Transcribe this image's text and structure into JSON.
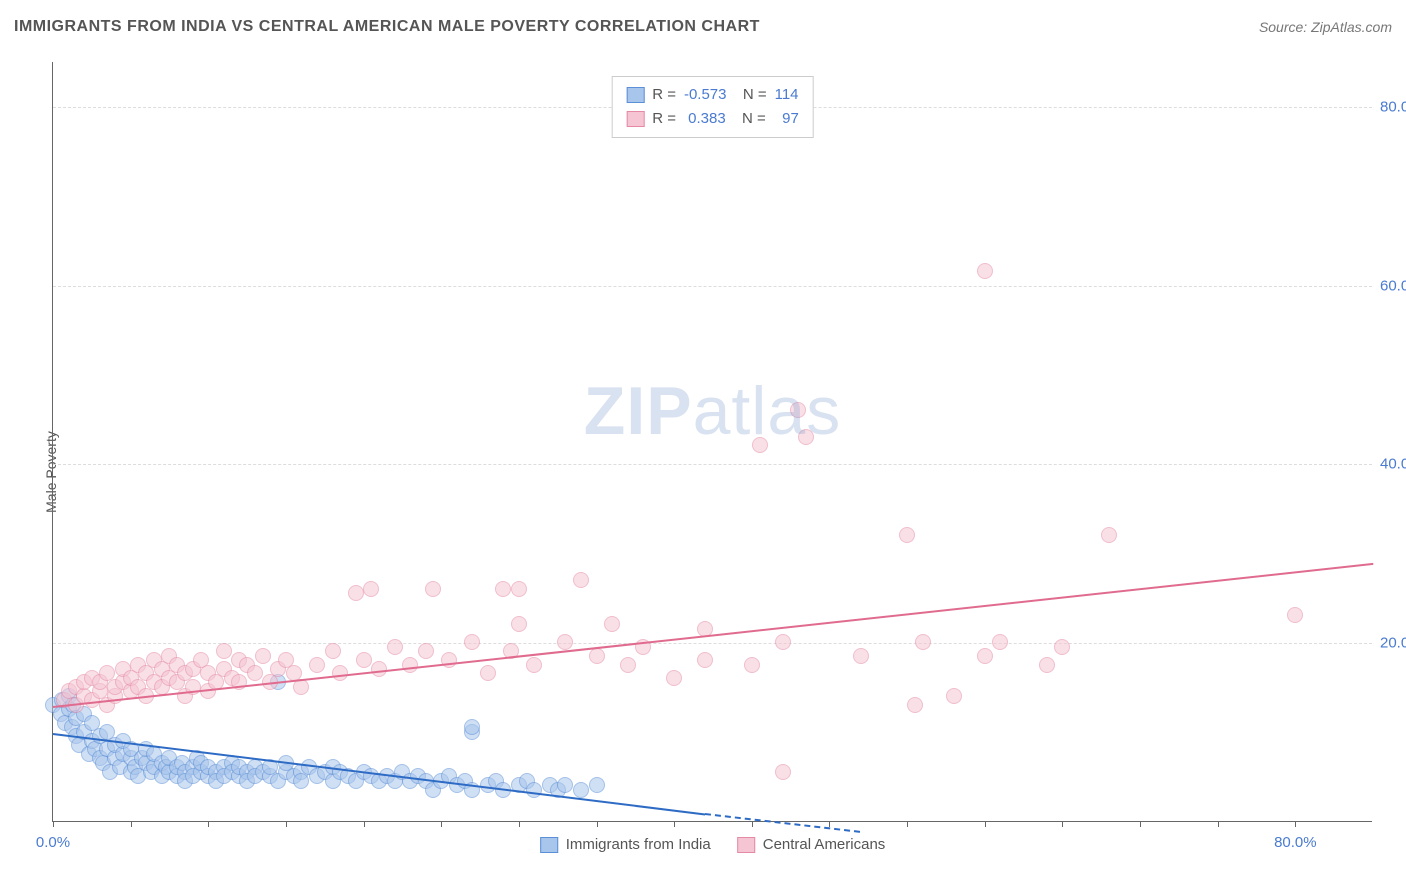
{
  "title": "IMMIGRANTS FROM INDIA VS CENTRAL AMERICAN MALE POVERTY CORRELATION CHART",
  "source": "Source: ZipAtlas.com",
  "y_axis_label": "Male Poverty",
  "watermark": {
    "bold": "ZIP",
    "light": "atlas"
  },
  "chart": {
    "type": "scatter",
    "xlim": [
      0,
      85
    ],
    "ylim": [
      0,
      85
    ],
    "x_ticks": [
      0,
      5,
      10,
      15,
      20,
      25,
      30,
      35,
      40,
      45,
      50,
      55,
      60,
      65,
      70,
      75,
      80
    ],
    "x_tick_labels": {
      "0": "0.0%",
      "80": "80.0%"
    },
    "y_gridlines": [
      20,
      40,
      60,
      80
    ],
    "y_tick_labels": {
      "20": "20.0%",
      "40": "40.0%",
      "60": "60.0%",
      "80": "80.0%"
    },
    "background_color": "#ffffff",
    "grid_color": "#dddddd",
    "axis_color": "#666666",
    "tick_label_color": "#4a7bd0",
    "point_radius": 8,
    "point_opacity": 0.55,
    "series": [
      {
        "name": "Immigrants from India",
        "color_fill": "#a8c5ec",
        "color_stroke": "#5b8fd6",
        "trend_color": "#2e6bc5",
        "R": "-0.573",
        "N": "114",
        "trend": {
          "x1": 0,
          "y1": 10,
          "x2": 42,
          "y2": 1.0,
          "dash_x2": 52,
          "dash_y2": -1.0
        },
        "points": [
          [
            0,
            13
          ],
          [
            0.5,
            12
          ],
          [
            0.6,
            13.5
          ],
          [
            0.8,
            11
          ],
          [
            1,
            12.5
          ],
          [
            1,
            14
          ],
          [
            1.2,
            10.5
          ],
          [
            1.3,
            13
          ],
          [
            1.5,
            9.5
          ],
          [
            1.5,
            11.5
          ],
          [
            1.7,
            8.5
          ],
          [
            2,
            10
          ],
          [
            2,
            12
          ],
          [
            2.3,
            7.5
          ],
          [
            2.5,
            9
          ],
          [
            2.5,
            11
          ],
          [
            2.7,
            8
          ],
          [
            3,
            7
          ],
          [
            3,
            9.5
          ],
          [
            3.2,
            6.5
          ],
          [
            3.5,
            8
          ],
          [
            3.5,
            10
          ],
          [
            3.7,
            5.5
          ],
          [
            4,
            7
          ],
          [
            4,
            8.5
          ],
          [
            4.3,
            6
          ],
          [
            4.5,
            7.5
          ],
          [
            4.5,
            9
          ],
          [
            5,
            5.5
          ],
          [
            5,
            7
          ],
          [
            5,
            8
          ],
          [
            5.3,
            6
          ],
          [
            5.5,
            5
          ],
          [
            5.7,
            7
          ],
          [
            6,
            6.5
          ],
          [
            6,
            8
          ],
          [
            6.3,
            5.5
          ],
          [
            6.5,
            6
          ],
          [
            6.5,
            7.5
          ],
          [
            7,
            5
          ],
          [
            7,
            6.5
          ],
          [
            7.3,
            6
          ],
          [
            7.5,
            5.5
          ],
          [
            7.5,
            7
          ],
          [
            8,
            5
          ],
          [
            8,
            6
          ],
          [
            8.3,
            6.5
          ],
          [
            8.5,
            5.5
          ],
          [
            8.5,
            4.5
          ],
          [
            9,
            6
          ],
          [
            9,
            5
          ],
          [
            9.3,
            7
          ],
          [
            9.5,
            5.5
          ],
          [
            9.5,
            6.5
          ],
          [
            10,
            5
          ],
          [
            10,
            6
          ],
          [
            10.5,
            5.5
          ],
          [
            10.5,
            4.5
          ],
          [
            11,
            6
          ],
          [
            11,
            5
          ],
          [
            11.5,
            6.5
          ],
          [
            11.5,
            5.5
          ],
          [
            12,
            5
          ],
          [
            12,
            6
          ],
          [
            12.5,
            5.5
          ],
          [
            12.5,
            4.5
          ],
          [
            13,
            6
          ],
          [
            13,
            5
          ],
          [
            13.5,
            5.5
          ],
          [
            14,
            5
          ],
          [
            14,
            6
          ],
          [
            14.5,
            4.5
          ],
          [
            15,
            5.5
          ],
          [
            15,
            6.5
          ],
          [
            15.5,
            5
          ],
          [
            16,
            5.5
          ],
          [
            16,
            4.5
          ],
          [
            16.5,
            6
          ],
          [
            17,
            5
          ],
          [
            17.5,
            5.5
          ],
          [
            18,
            4.5
          ],
          [
            18,
            6
          ],
          [
            18.5,
            5.5
          ],
          [
            19,
            5
          ],
          [
            19.5,
            4.5
          ],
          [
            20,
            5.5
          ],
          [
            20.5,
            5
          ],
          [
            21,
            4.5
          ],
          [
            21.5,
            5
          ],
          [
            22,
            4.5
          ],
          [
            22.5,
            5.5
          ],
          [
            23,
            4.5
          ],
          [
            23.5,
            5
          ],
          [
            24,
            4.5
          ],
          [
            24.5,
            3.5
          ],
          [
            25,
            4.5
          ],
          [
            25.5,
            5
          ],
          [
            26,
            4
          ],
          [
            26.5,
            4.5
          ],
          [
            27,
            3.5
          ],
          [
            28,
            4
          ],
          [
            28.5,
            4.5
          ],
          [
            29,
            3.5
          ],
          [
            30,
            4
          ],
          [
            30.5,
            4.5
          ],
          [
            31,
            3.5
          ],
          [
            32,
            4
          ],
          [
            32.5,
            3.5
          ],
          [
            33,
            4
          ],
          [
            34,
            3.5
          ],
          [
            35,
            4
          ],
          [
            14.5,
            15.5
          ],
          [
            27,
            10
          ],
          [
            27,
            10.5
          ]
        ]
      },
      {
        "name": "Central Americans",
        "color_fill": "#f5c5d3",
        "color_stroke": "#e58aa5",
        "trend_color": "#e06b8f",
        "R": "0.383",
        "N": "97",
        "trend": {
          "x1": 0,
          "y1": 13,
          "x2": 85,
          "y2": 29
        },
        "points": [
          [
            0.7,
            13.5
          ],
          [
            1,
            14.5
          ],
          [
            1.5,
            13
          ],
          [
            1.5,
            15
          ],
          [
            2,
            14
          ],
          [
            2,
            15.5
          ],
          [
            2.5,
            13.5
          ],
          [
            2.5,
            16
          ],
          [
            3,
            14.5
          ],
          [
            3,
            15.5
          ],
          [
            3.5,
            13
          ],
          [
            3.5,
            16.5
          ],
          [
            4,
            14
          ],
          [
            4,
            15
          ],
          [
            4.5,
            15.5
          ],
          [
            4.5,
            17
          ],
          [
            5,
            14.5
          ],
          [
            5,
            16
          ],
          [
            5.5,
            15
          ],
          [
            5.5,
            17.5
          ],
          [
            6,
            14
          ],
          [
            6,
            16.5
          ],
          [
            6.5,
            15.5
          ],
          [
            6.5,
            18
          ],
          [
            7,
            15
          ],
          [
            7,
            17
          ],
          [
            7.5,
            16
          ],
          [
            7.5,
            18.5
          ],
          [
            8,
            15.5
          ],
          [
            8,
            17.5
          ],
          [
            8.5,
            16.5
          ],
          [
            8.5,
            14
          ],
          [
            9,
            17
          ],
          [
            9,
            15
          ],
          [
            9.5,
            18
          ],
          [
            10,
            16.5
          ],
          [
            10,
            14.5
          ],
          [
            10.5,
            15.5
          ],
          [
            11,
            17
          ],
          [
            11,
            19
          ],
          [
            11.5,
            16
          ],
          [
            12,
            18
          ],
          [
            12,
            15.5
          ],
          [
            12.5,
            17.5
          ],
          [
            13,
            16.5
          ],
          [
            13.5,
            18.5
          ],
          [
            14,
            15.5
          ],
          [
            14.5,
            17
          ],
          [
            15,
            18
          ],
          [
            15.5,
            16.5
          ],
          [
            16,
            15
          ],
          [
            17,
            17.5
          ],
          [
            18,
            19
          ],
          [
            18.5,
            16.5
          ],
          [
            19.5,
            25.5
          ],
          [
            20,
            18
          ],
          [
            20.5,
            26
          ],
          [
            21,
            17
          ],
          [
            22,
            19.5
          ],
          [
            23,
            17.5
          ],
          [
            24,
            19
          ],
          [
            25.5,
            18
          ],
          [
            24.5,
            26
          ],
          [
            27,
            20
          ],
          [
            28,
            16.5
          ],
          [
            29,
            26
          ],
          [
            29.5,
            19
          ],
          [
            30,
            22
          ],
          [
            31,
            17.5
          ],
          [
            30,
            26
          ],
          [
            33,
            20
          ],
          [
            34,
            27
          ],
          [
            35,
            18.5
          ],
          [
            36,
            22
          ],
          [
            37,
            17.5
          ],
          [
            38,
            19.5
          ],
          [
            40,
            16
          ],
          [
            42,
            18
          ],
          [
            42,
            21.5
          ],
          [
            45,
            17.5
          ],
          [
            45.5,
            42
          ],
          [
            47,
            20
          ],
          [
            48,
            46
          ],
          [
            48.5,
            43
          ],
          [
            52,
            18.5
          ],
          [
            55,
            32
          ],
          [
            55.5,
            13
          ],
          [
            56,
            20
          ],
          [
            58,
            14
          ],
          [
            60,
            18.5
          ],
          [
            60,
            61.5
          ],
          [
            61,
            20
          ],
          [
            64,
            17.5
          ],
          [
            65,
            19.5
          ],
          [
            68,
            32
          ],
          [
            80,
            23
          ],
          [
            47,
            5.5
          ]
        ]
      }
    ]
  },
  "legend_bottom": [
    {
      "label": "Immigrants from India",
      "fill": "#a8c5ec",
      "stroke": "#5b8fd6"
    },
    {
      "label": "Central Americans",
      "fill": "#f5c5d3",
      "stroke": "#e58aa5"
    }
  ]
}
